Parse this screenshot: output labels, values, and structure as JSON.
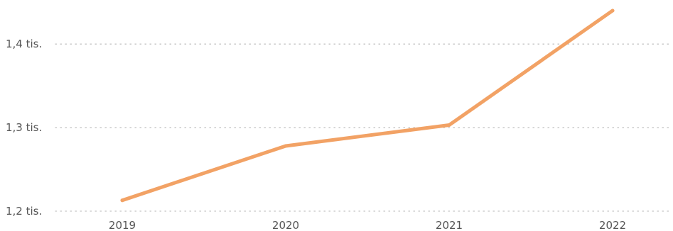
{
  "chart_data": {
    "type": "line",
    "x": [
      "2019",
      "2020",
      "2021",
      "2022"
    ],
    "series": [
      {
        "values": [
          1213,
          1278,
          1303,
          1440
        ]
      }
    ],
    "yticks": [
      {
        "value": 1200,
        "label": "1,2 tis."
      },
      {
        "value": 1300,
        "label": "1,3 tis."
      },
      {
        "value": 1400,
        "label": "1,4 tis."
      }
    ],
    "ylim": [
      1200,
      1440
    ],
    "grid": true,
    "line_color": "#F2A265",
    "grid_color": "#C4C4C4",
    "text_color": "#555555"
  }
}
